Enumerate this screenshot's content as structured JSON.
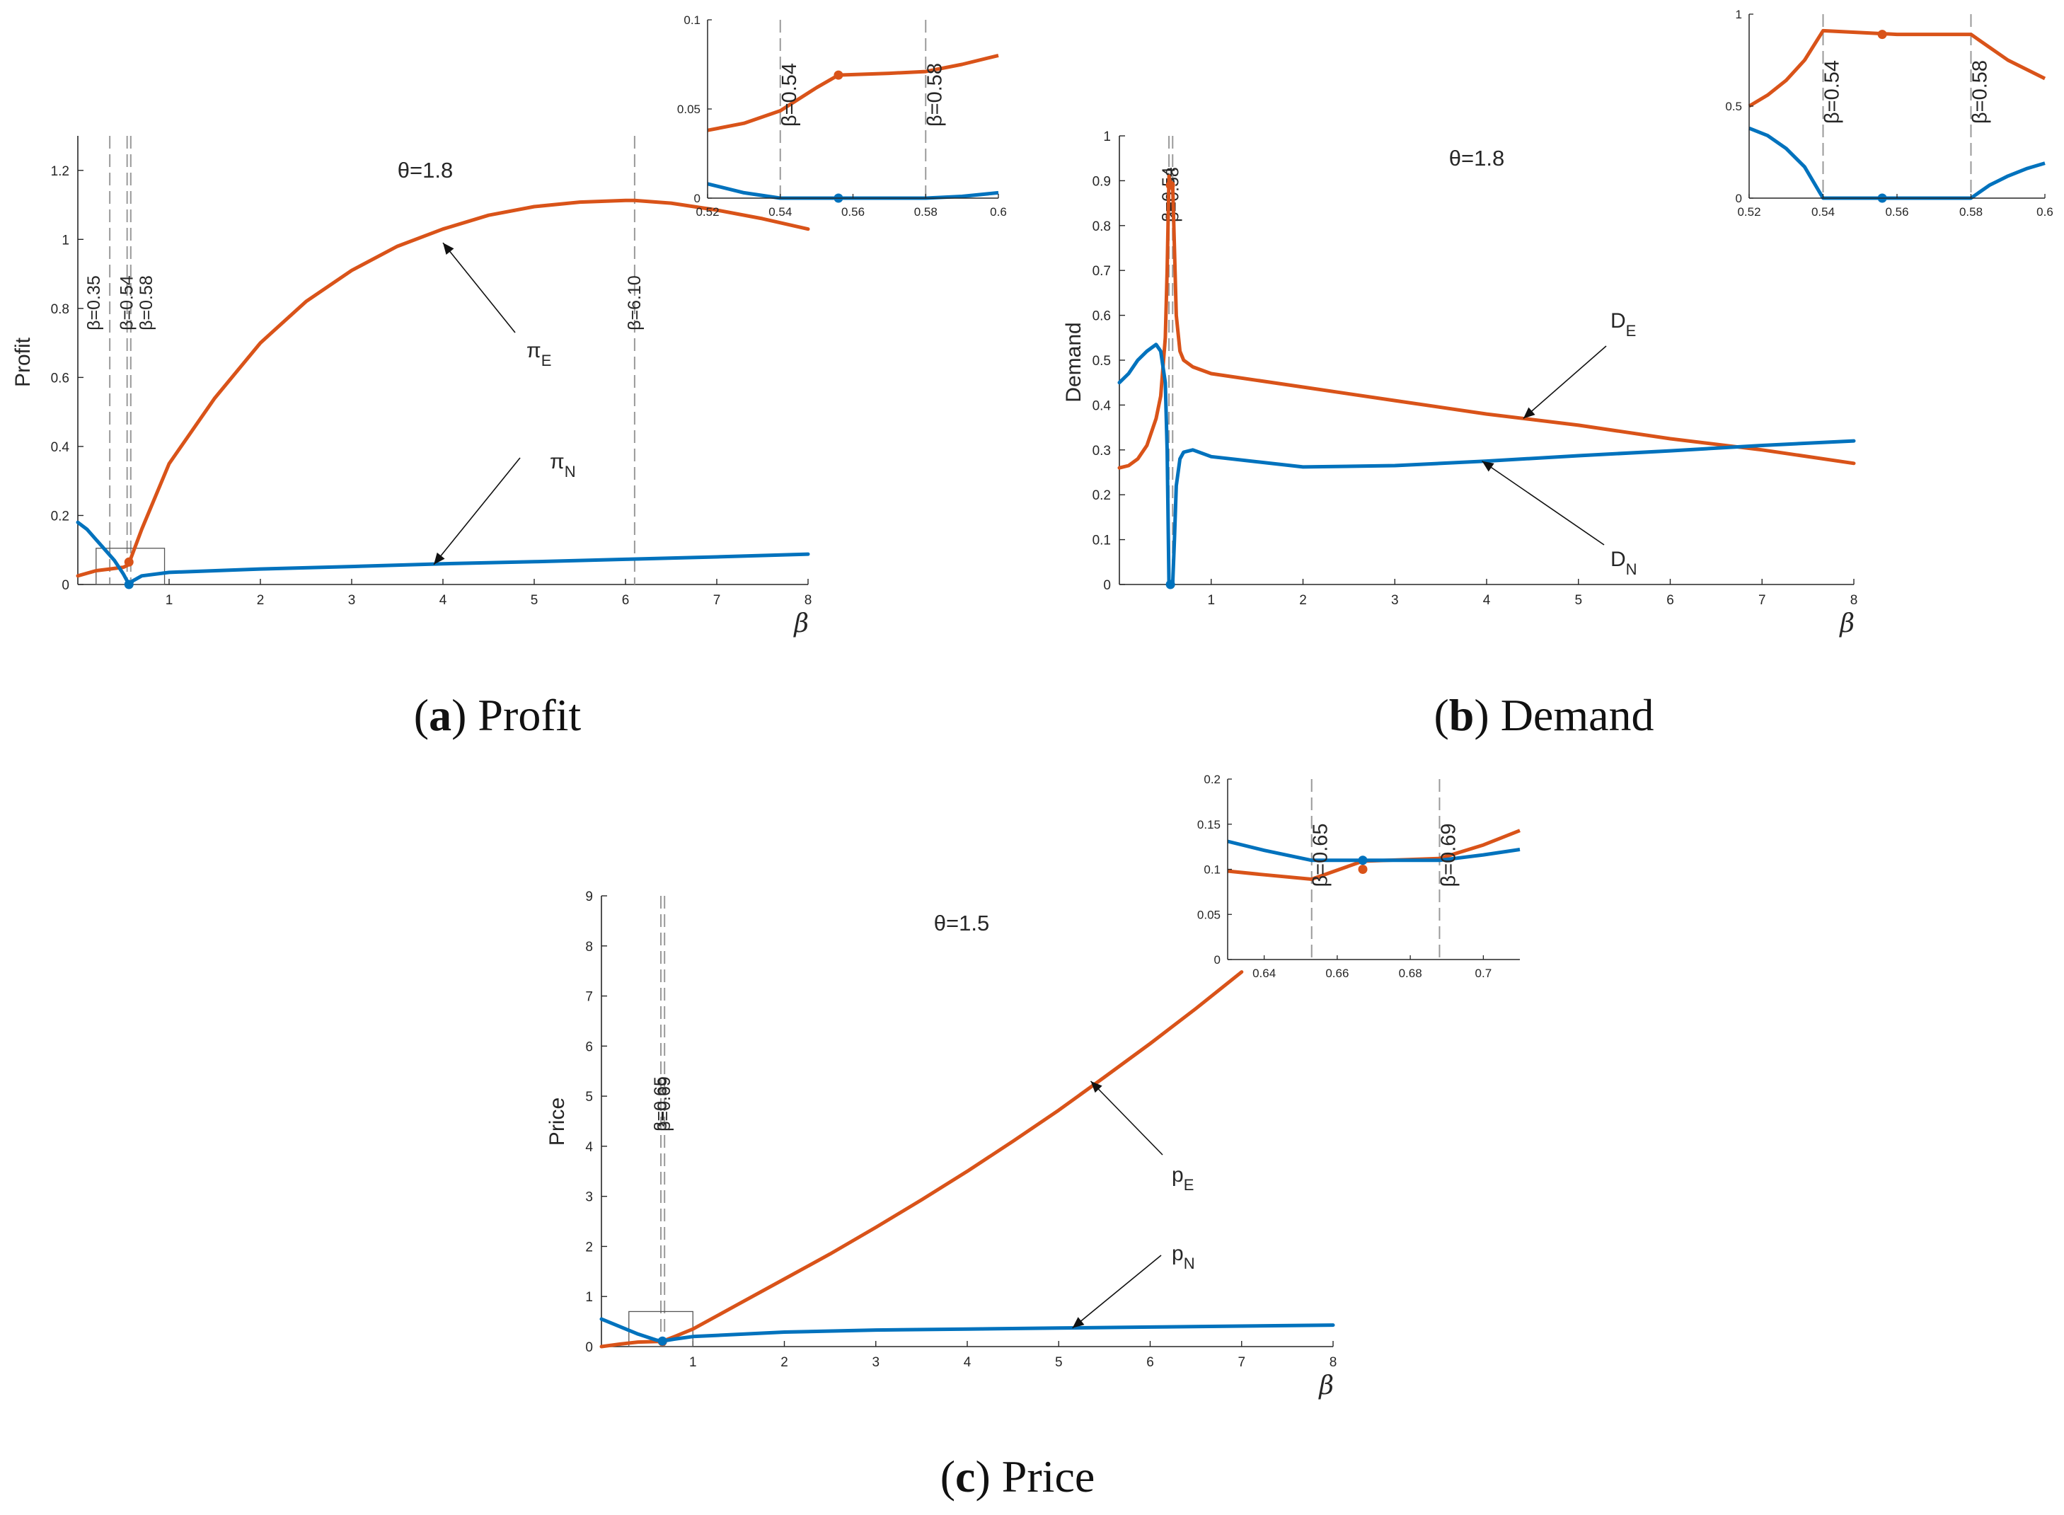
{
  "colors": {
    "E": "#d95319",
    "N": "#0072bd",
    "axis": "#262626",
    "dash": "#9a9a9a"
  },
  "chart_data": [
    {
      "id": "a",
      "type": "line",
      "caption": {
        "letter": "a",
        "text": "Profit"
      },
      "theta_label": "θ=1.8",
      "xlabel": "β",
      "ylabel": "Profit",
      "xlim": [
        0,
        8
      ],
      "ylim": [
        0,
        1.3
      ],
      "xticks": [
        "1",
        "2",
        "3",
        "4",
        "5",
        "6",
        "7",
        "8"
      ],
      "yticks": [
        "0",
        "0.2",
        "0.4",
        "0.6",
        "0.8",
        "1",
        "1.2"
      ],
      "vlines": [
        {
          "x": 0.35,
          "label": "β=0.35"
        },
        {
          "x": 0.54,
          "label": "β=0.54"
        },
        {
          "x": 0.58,
          "label": "β=0.58"
        },
        {
          "x": 6.1,
          "label": "β=6.10"
        }
      ],
      "annotations": [
        {
          "main": "π",
          "sub": "E"
        },
        {
          "main": "π",
          "sub": "N"
        }
      ],
      "series": [
        {
          "key": "E",
          "x": [
            0,
            0.2,
            0.35,
            0.5,
            0.54,
            0.56,
            0.58,
            0.7,
            1,
            1.5,
            2,
            2.5,
            3,
            3.5,
            4,
            4.5,
            5,
            5.5,
            6,
            6.1,
            6.5,
            7,
            7.5,
            8
          ],
          "values": [
            0.025,
            0.04,
            0.045,
            0.05,
            0.055,
            0.065,
            0.075,
            0.16,
            0.35,
            0.54,
            0.7,
            0.82,
            0.91,
            0.98,
            1.03,
            1.07,
            1.095,
            1.108,
            1.113,
            1.113,
            1.105,
            1.085,
            1.06,
            1.03
          ]
        },
        {
          "key": "N",
          "x": [
            0,
            0.1,
            0.2,
            0.3,
            0.4,
            0.45,
            0.5,
            0.54,
            0.56,
            0.58,
            0.6,
            0.7,
            1,
            2,
            3,
            4,
            5,
            6,
            7,
            8
          ],
          "values": [
            0.18,
            0.16,
            0.13,
            0.1,
            0.07,
            0.05,
            0.03,
            0.01,
            0.0,
            0.0,
            0.01,
            0.025,
            0.035,
            0.045,
            0.052,
            0.06,
            0.066,
            0.073,
            0.08,
            0.088
          ]
        }
      ],
      "markers": [
        {
          "key": "E",
          "x": 0.56,
          "y": 0.065
        },
        {
          "key": "N",
          "x": 0.56,
          "y": 0.0
        }
      ],
      "zoom_box": {
        "x": [
          0.2,
          0.95
        ],
        "y": [
          0,
          0.105
        ]
      },
      "inset": {
        "xlim": [
          0.52,
          0.6
        ],
        "ylim": [
          0,
          0.1
        ],
        "xticks": [
          "0.52",
          "0.54",
          "0.56",
          "0.58",
          "0.6"
        ],
        "yticks": [
          "0",
          "0.05",
          "0.1"
        ],
        "vlines": [
          {
            "x": 0.54,
            "label": "β=0.54"
          },
          {
            "x": 0.58,
            "label": "β=0.58"
          }
        ],
        "series": [
          {
            "key": "E",
            "x": [
              0.52,
              0.53,
              0.54,
              0.55,
              0.556,
              0.57,
              0.58,
              0.59,
              0.6
            ],
            "values": [
              0.038,
              0.042,
              0.049,
              0.062,
              0.069,
              0.07,
              0.071,
              0.075,
              0.08
            ]
          },
          {
            "key": "N",
            "x": [
              0.52,
              0.53,
              0.54,
              0.55,
              0.56,
              0.57,
              0.58,
              0.59,
              0.6
            ],
            "values": [
              0.008,
              0.003,
              0.0,
              0.0,
              0.0,
              0.0,
              0.0,
              0.001,
              0.003
            ]
          }
        ],
        "markers": [
          {
            "key": "E",
            "x": 0.556,
            "y": 0.069
          },
          {
            "key": "N",
            "x": 0.556,
            "y": 0.0
          }
        ]
      }
    },
    {
      "id": "b",
      "type": "line",
      "caption": {
        "letter": "b",
        "text": "Demand"
      },
      "theta_label": "θ=1.8",
      "xlabel": "β",
      "ylabel": "Demand",
      "xlim": [
        0,
        8
      ],
      "ylim": [
        0,
        1
      ],
      "xticks": [
        "1",
        "2",
        "3",
        "4",
        "5",
        "6",
        "7",
        "8"
      ],
      "yticks": [
        "0",
        "0.1",
        "0.2",
        "0.3",
        "0.4",
        "0.5",
        "0.6",
        "0.7",
        "0.8",
        "0.9",
        "1"
      ],
      "vlines": [
        {
          "x": 0.54,
          "label": "β=0.54"
        },
        {
          "x": 0.58,
          "label": "β=0.58"
        }
      ],
      "annotations": [
        {
          "main": "D",
          "sub": "E"
        },
        {
          "main": "D",
          "sub": "N"
        }
      ],
      "series": [
        {
          "key": "E",
          "x": [
            0,
            0.1,
            0.2,
            0.3,
            0.4,
            0.45,
            0.5,
            0.52,
            0.54,
            0.56,
            0.58,
            0.6,
            0.62,
            0.66,
            0.7,
            0.8,
            1,
            2,
            3,
            4,
            5,
            6,
            7,
            8
          ],
          "values": [
            0.26,
            0.265,
            0.28,
            0.31,
            0.37,
            0.42,
            0.55,
            0.7,
            0.91,
            0.89,
            0.89,
            0.75,
            0.6,
            0.52,
            0.5,
            0.485,
            0.47,
            0.44,
            0.41,
            0.38,
            0.355,
            0.325,
            0.3,
            0.27
          ]
        },
        {
          "key": "N",
          "x": [
            0,
            0.1,
            0.2,
            0.3,
            0.4,
            0.45,
            0.5,
            0.52,
            0.54,
            0.56,
            0.58,
            0.6,
            0.62,
            0.66,
            0.7,
            0.8,
            1,
            2,
            3,
            4,
            5,
            6,
            7,
            8
          ],
          "values": [
            0.45,
            0.47,
            0.5,
            0.52,
            0.535,
            0.52,
            0.45,
            0.3,
            0.0,
            0.0,
            0.0,
            0.1,
            0.22,
            0.28,
            0.295,
            0.3,
            0.285,
            0.262,
            0.265,
            0.275,
            0.287,
            0.298,
            0.31,
            0.32
          ]
        }
      ],
      "markers": [
        {
          "key": "E",
          "x": 0.556,
          "y": 0.89
        },
        {
          "key": "N",
          "x": 0.556,
          "y": 0.0
        }
      ],
      "inset": {
        "xlim": [
          0.52,
          0.6
        ],
        "ylim": [
          0,
          1
        ],
        "xticks": [
          "0.52",
          "0.54",
          "0.56",
          "0.58",
          "0.6"
        ],
        "yticks": [
          "0",
          "0.5",
          "1"
        ],
        "vlines": [
          {
            "x": 0.54,
            "label": "β=0.54"
          },
          {
            "x": 0.58,
            "label": "β=0.58"
          }
        ],
        "series": [
          {
            "key": "E",
            "x": [
              0.52,
              0.525,
              0.53,
              0.535,
              0.54,
              0.55,
              0.56,
              0.57,
              0.58,
              0.585,
              0.59,
              0.595,
              0.6
            ],
            "values": [
              0.5,
              0.56,
              0.64,
              0.75,
              0.91,
              0.9,
              0.89,
              0.89,
              0.89,
              0.82,
              0.75,
              0.7,
              0.65
            ]
          },
          {
            "key": "N",
            "x": [
              0.52,
              0.525,
              0.53,
              0.535,
              0.54,
              0.55,
              0.56,
              0.57,
              0.58,
              0.585,
              0.59,
              0.595,
              0.6
            ],
            "values": [
              0.38,
              0.34,
              0.27,
              0.17,
              0.0,
              0.0,
              0.0,
              0.0,
              0.0,
              0.07,
              0.12,
              0.16,
              0.19
            ]
          }
        ],
        "markers": [
          {
            "key": "E",
            "x": 0.556,
            "y": 0.89
          },
          {
            "key": "N",
            "x": 0.556,
            "y": 0.0
          }
        ]
      }
    },
    {
      "id": "c",
      "type": "line",
      "caption": {
        "letter": "c",
        "text": "Price"
      },
      "theta_label": "θ=1.5",
      "xlabel": "β",
      "ylabel": "Price",
      "xlim": [
        0,
        8
      ],
      "ylim": [
        0,
        9
      ],
      "xticks": [
        "1",
        "2",
        "3",
        "4",
        "5",
        "6",
        "7",
        "8"
      ],
      "yticks": [
        "0",
        "1",
        "2",
        "3",
        "4",
        "5",
        "6",
        "7",
        "8",
        "9"
      ],
      "vlines": [
        {
          "x": 0.65,
          "label": "β=0.65"
        },
        {
          "x": 0.69,
          "label": "β=0.69"
        }
      ],
      "annotations": [
        {
          "main": "p",
          "sub": "E"
        },
        {
          "main": "p",
          "sub": "N"
        }
      ],
      "series": [
        {
          "key": "E",
          "x": [
            0,
            0.2,
            0.4,
            0.6,
            0.667,
            0.7,
            0.8,
            1,
            1.5,
            2,
            2.5,
            3,
            3.5,
            4,
            4.5,
            5,
            5.5,
            6,
            6.5,
            7
          ],
          "values": [
            0.0,
            0.05,
            0.09,
            0.1,
            0.1,
            0.13,
            0.2,
            0.35,
            0.85,
            1.35,
            1.85,
            2.38,
            2.93,
            3.5,
            4.1,
            4.72,
            5.38,
            6.05,
            6.75,
            7.48
          ]
        },
        {
          "key": "N",
          "x": [
            0,
            0.2,
            0.4,
            0.6,
            0.667,
            0.7,
            0.8,
            1,
            2,
            3,
            4,
            5,
            6,
            7,
            8
          ],
          "values": [
            0.55,
            0.4,
            0.25,
            0.13,
            0.11,
            0.12,
            0.15,
            0.2,
            0.29,
            0.33,
            0.35,
            0.37,
            0.39,
            0.41,
            0.43
          ]
        }
      ],
      "markers": [
        {
          "key": "E",
          "x": 0.667,
          "y": 0.1
        },
        {
          "key": "N",
          "x": 0.667,
          "y": 0.11
        }
      ],
      "zoom_box": {
        "x": [
          0.3,
          1.0
        ],
        "y": [
          0,
          0.7
        ]
      },
      "inset": {
        "xlim": [
          0.63,
          0.71
        ],
        "ylim": [
          0,
          0.2
        ],
        "xticks": [
          "0.64",
          "0.66",
          "0.68",
          "0.7"
        ],
        "yticks": [
          "0",
          "0.05",
          "0.1",
          "0.15",
          "0.2"
        ],
        "vlines": [
          {
            "x": 0.653,
            "label": "β=0.65"
          },
          {
            "x": 0.688,
            "label": "β=0.69"
          }
        ],
        "series": [
          {
            "key": "E",
            "x": [
              0.63,
              0.64,
              0.653,
              0.667,
              0.688,
              0.7,
              0.71
            ],
            "values": [
              0.098,
              0.094,
              0.089,
              0.109,
              0.112,
              0.127,
              0.143
            ]
          },
          {
            "key": "N",
            "x": [
              0.63,
              0.64,
              0.653,
              0.667,
              0.688,
              0.7,
              0.71
            ],
            "values": [
              0.131,
              0.121,
              0.11,
              0.11,
              0.11,
              0.116,
              0.122
            ]
          }
        ],
        "markers": [
          {
            "key": "E",
            "x": 0.667,
            "y": 0.1
          },
          {
            "key": "N",
            "x": 0.667,
            "y": 0.11
          }
        ]
      }
    }
  ]
}
